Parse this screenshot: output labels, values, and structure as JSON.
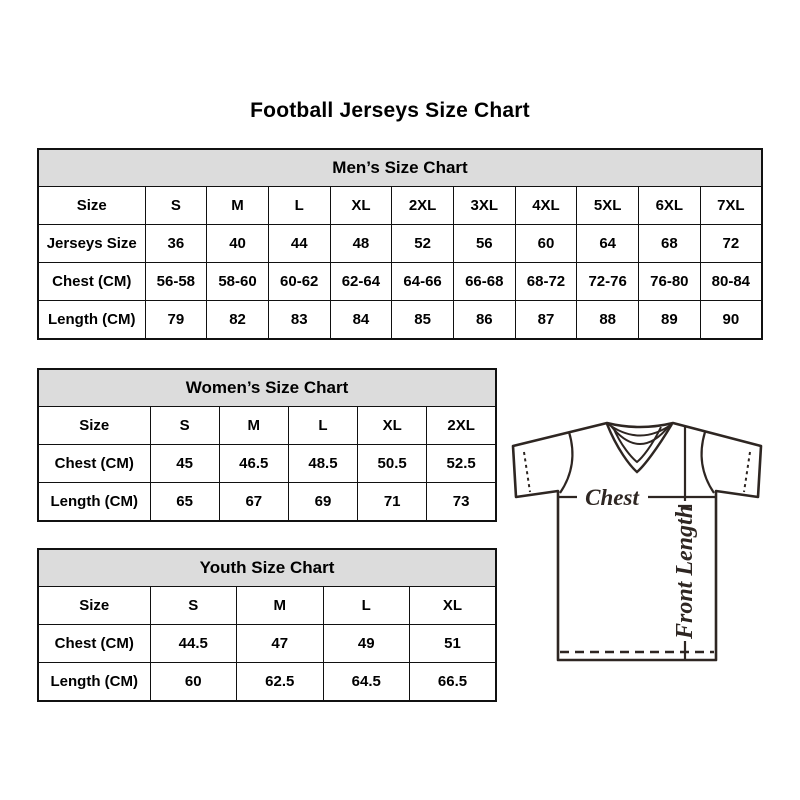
{
  "page": {
    "title": "Football Jerseys Size Chart"
  },
  "tables": {
    "mens": {
      "title": "Men’s Size Chart",
      "rows": [
        [
          "Size",
          "S",
          "M",
          "L",
          "XL",
          "2XL",
          "3XL",
          "4XL",
          "5XL",
          "6XL",
          "7XL"
        ],
        [
          "Jerseys Size",
          "36",
          "40",
          "44",
          "48",
          "52",
          "56",
          "60",
          "64",
          "68",
          "72"
        ],
        [
          "Chest (CM)",
          "56-58",
          "58-60",
          "60-62",
          "62-64",
          "64-66",
          "66-68",
          "68-72",
          "72-76",
          "76-80",
          "80-84"
        ],
        [
          "Length (CM)",
          "79",
          "82",
          "83",
          "84",
          "85",
          "86",
          "87",
          "88",
          "89",
          "90"
        ]
      ]
    },
    "womens": {
      "title": "Women’s Size Chart",
      "rows": [
        [
          "Size",
          "S",
          "M",
          "L",
          "XL",
          "2XL"
        ],
        [
          "Chest (CM)",
          "45",
          "46.5",
          "48.5",
          "50.5",
          "52.5"
        ],
        [
          "Length (CM)",
          "65",
          "67",
          "69",
          "71",
          "73"
        ]
      ]
    },
    "youth": {
      "title": "Youth Size Chart",
      "rows": [
        [
          "Size",
          "S",
          "M",
          "L",
          "XL"
        ],
        [
          "Chest (CM)",
          "44.5",
          "47",
          "49",
          "51"
        ],
        [
          "Length (CM)",
          "60",
          "62.5",
          "64.5",
          "66.5"
        ]
      ]
    }
  },
  "diagram": {
    "chest_label": "Chest",
    "front_length_label": "Front Length"
  },
  "colors": {
    "table_header_bg": "#dcdcdc",
    "table_border": "#111111",
    "diagram_line": "#2e2622",
    "text": "#000000"
  }
}
